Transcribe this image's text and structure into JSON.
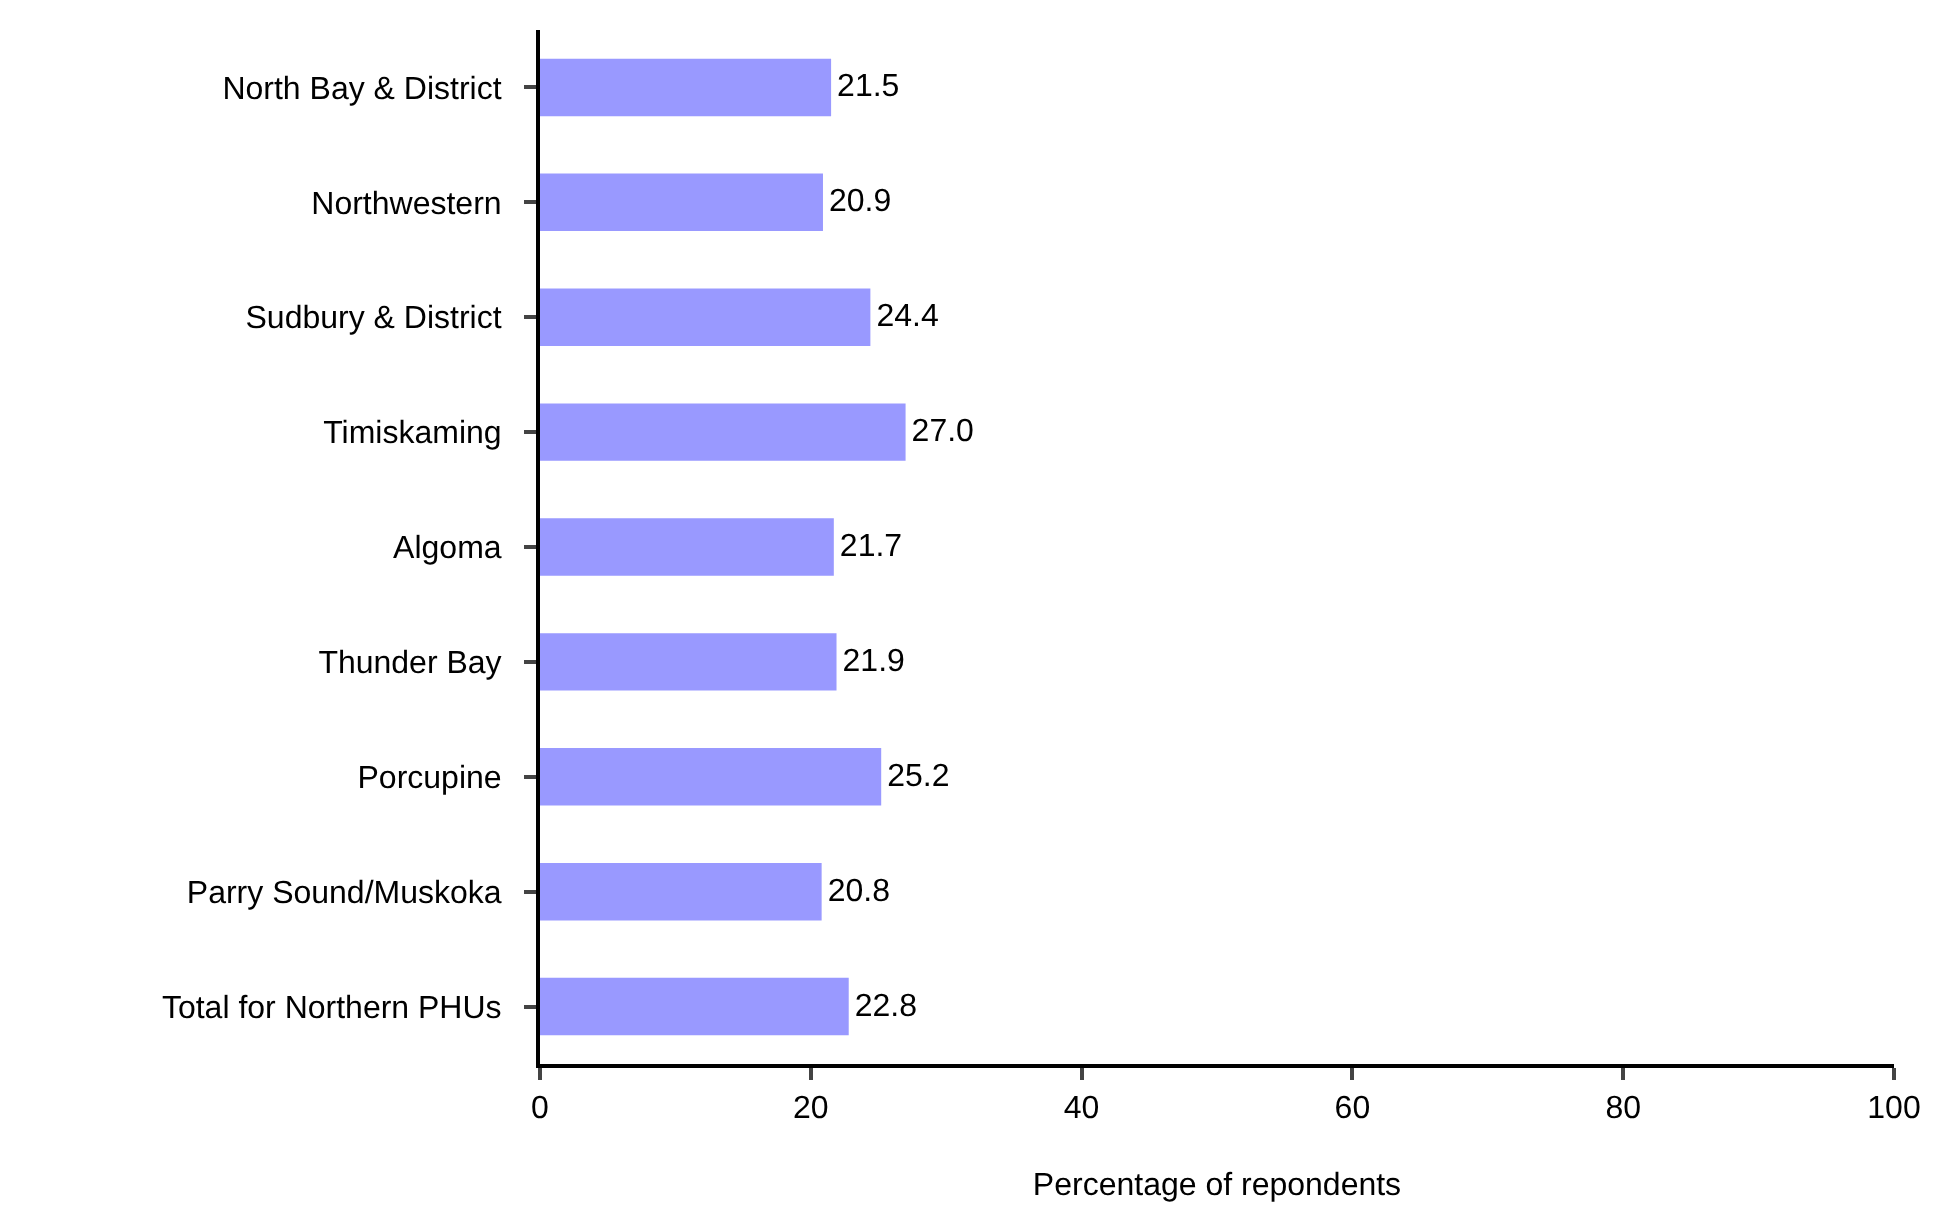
{
  "chart_data": {
    "type": "bar",
    "orientation": "horizontal",
    "xlabel": "Percentage of repondents",
    "categories": [
      "North Bay & District",
      "Northwestern",
      "Sudbury & District",
      "Timiskaming",
      "Algoma",
      "Thunder Bay",
      "Porcupine",
      "Parry Sound/Muskoka",
      "Total for Northern PHUs"
    ],
    "values": [
      21.5,
      20.9,
      24.4,
      27.0,
      21.7,
      21.9,
      25.2,
      20.8,
      22.8
    ],
    "value_labels": [
      "21.5",
      "20.9",
      "24.4",
      "27.0",
      "21.7",
      "21.9",
      "25.2",
      "20.8",
      "22.8"
    ],
    "color": "#9999ff",
    "xlim": [
      0,
      100
    ],
    "xticks": [
      0,
      20,
      40,
      60,
      80,
      100
    ]
  }
}
